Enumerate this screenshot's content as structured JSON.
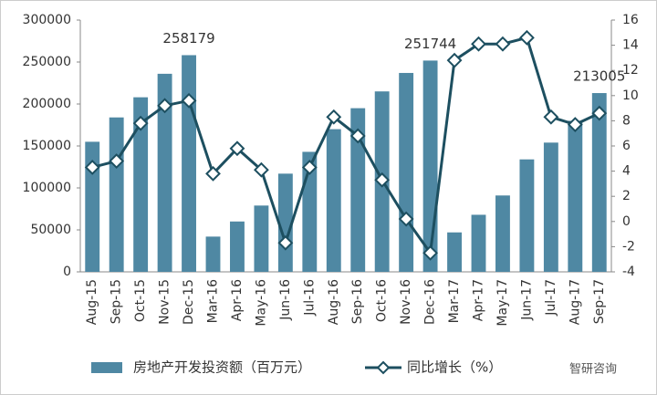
{
  "chart_data": {
    "type": "bar_line",
    "categories": [
      "Aug-15",
      "Sep-15",
      "Oct-15",
      "Nov-15",
      "Dec-15",
      "Mar-16",
      "Apr-16",
      "May-16",
      "Jun-16",
      "Jul-16",
      "Aug-16",
      "Sep-16",
      "Oct-16",
      "Nov-16",
      "Dec-16",
      "Mar-17",
      "Apr-17",
      "May-17",
      "Jun-17",
      "Jul-17",
      "Aug-17",
      "Sep-17"
    ],
    "series": [
      {
        "name": "房地产开发投资额（百万元）",
        "type": "bar",
        "color": "#4f88a3",
        "values": [
          155000,
          184000,
          208000,
          236000,
          258179,
          42000,
          60000,
          79000,
          117000,
          143000,
          170000,
          195000,
          215000,
          237000,
          251744,
          47000,
          68000,
          91000,
          134000,
          154000,
          180000,
          213005
        ],
        "value_labels": [
          null,
          null,
          null,
          null,
          "258179",
          null,
          null,
          null,
          null,
          null,
          null,
          null,
          null,
          null,
          "251744",
          null,
          null,
          null,
          null,
          null,
          null,
          "213005"
        ]
      },
      {
        "name": "同比增长（%）",
        "type": "line",
        "axis": "y2",
        "color": "#1d4f60",
        "values": [
          4.3,
          4.8,
          7.8,
          9.2,
          9.6,
          3.8,
          5.8,
          4.1,
          -1.7,
          4.3,
          8.3,
          6.8,
          3.3,
          0.2,
          -2.5,
          12.8,
          14.1,
          14.1,
          14.6,
          8.3,
          7.7,
          8.6
        ]
      }
    ],
    "ylim": [
      0,
      300000
    ],
    "yticks": [
      0,
      50000,
      100000,
      150000,
      200000,
      250000,
      300000
    ],
    "y2lim": [
      -4,
      16
    ],
    "y2ticks": [
      -4,
      -2,
      0,
      2,
      4,
      6,
      8,
      10,
      12,
      14,
      16
    ],
    "grid": false,
    "legend": "bottom",
    "watermark": "智研咨询"
  }
}
